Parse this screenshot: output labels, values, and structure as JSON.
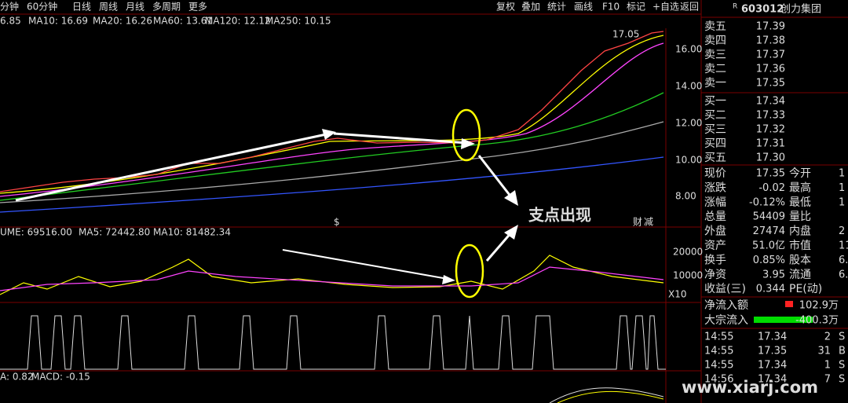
{
  "toolbar": {
    "periods": [
      "分钟",
      "60分钟",
      "日线",
      "周线",
      "月线",
      "多周期",
      "更多"
    ],
    "tools": [
      "复权",
      "叠加",
      "统计",
      "画线",
      "F10",
      "标记",
      "+自选",
      "返回"
    ]
  },
  "ma_legend": [
    {
      "label": "6.85",
      "color": "#ffffff"
    },
    {
      "label": "MA10: 16.69",
      "color": "#ffff00"
    },
    {
      "label": "MA20: 16.26",
      "color": "#ff44ff"
    },
    {
      "label": "MA60: 13.61",
      "color": "#22dd22"
    },
    {
      "label": "MA120: 12.12",
      "color": "#cccccc"
    },
    {
      "label": "MA250: 10.15",
      "color": "#3355ff"
    }
  ],
  "price_axis": [
    "16.00",
    "14.00",
    "12.00",
    "10.00",
    "8.00"
  ],
  "price_marker": "17.05",
  "volume_legend": [
    {
      "label": "UME: 69516.00",
      "color": "#ffffff"
    },
    {
      "label": "MA5: 72442.80",
      "color": "#ffff00"
    },
    {
      "label": "MA10: 81482.34",
      "color": "#ff44ff"
    }
  ],
  "volume_axis": [
    "20000",
    "10000"
  ],
  "volume_multiplier": "X10",
  "macd_legend": [
    {
      "label": "A: 0.82",
      "color": "#ffffff"
    },
    {
      "label": "MACD: -0.15",
      "color": "#ffff00"
    }
  ],
  "annotation": "支点出现",
  "badges": [
    "$",
    "财",
    "减"
  ],
  "stock": {
    "flag": "R",
    "code": "603012",
    "name": "创力集团"
  },
  "order_book": [
    {
      "label": "卖五",
      "price": "17.39",
      "color": "#ff4444"
    },
    {
      "label": "卖四",
      "price": "17.38",
      "color": "#ff4444"
    },
    {
      "label": "卖三",
      "price": "17.37",
      "color": "#ffffff"
    },
    {
      "label": "卖二",
      "price": "17.36",
      "color": "#22dd22"
    },
    {
      "label": "卖一",
      "price": "17.35",
      "color": "#22dd22"
    },
    {
      "label": "买一",
      "price": "17.34",
      "color": "#22dd22"
    },
    {
      "label": "买二",
      "price": "17.33",
      "color": "#22dd22"
    },
    {
      "label": "买三",
      "price": "17.32",
      "color": "#22dd22"
    },
    {
      "label": "买四",
      "price": "17.31",
      "color": "#22dd22"
    },
    {
      "label": "买五",
      "price": "17.30",
      "color": "#22dd22"
    }
  ],
  "quotes": [
    {
      "cells": [
        "现价",
        "17.35",
        "今开",
        "1"
      ],
      "color": "#22dd22"
    },
    {
      "cells": [
        "涨跌",
        "-0.02",
        "最高",
        "1"
      ],
      "color": "#22dd22"
    },
    {
      "cells": [
        "涨幅",
        "-0.12%",
        "最低",
        "1"
      ],
      "color": "#22dd22"
    },
    {
      "cells": [
        "总量",
        "54409",
        "量比",
        ""
      ],
      "color": "#ffff00"
    },
    {
      "cells": [
        "外盘",
        "27474",
        "内盘",
        "2"
      ],
      "color": "#ff4444"
    },
    {
      "cells": [
        "资产",
        "51.0亿",
        "市值",
        "110"
      ],
      "color": "#ffffff"
    },
    {
      "cells": [
        "换手",
        "0.85%",
        "股本",
        "6.3"
      ],
      "color": "#ffffff"
    },
    {
      "cells": [
        "净资",
        "3.95",
        "流通",
        "6.3"
      ],
      "color": "#ffffff"
    },
    {
      "cells": [
        "收益(三)",
        "0.344",
        "PE(动)",
        ""
      ],
      "color": "#ffffff"
    }
  ],
  "flows": [
    {
      "label": "净流入额",
      "value": "102.9万",
      "color": "#ff4444"
    },
    {
      "label": "大宗流入",
      "value": "-400.3万",
      "color": "#22dd22"
    }
  ],
  "trades": [
    [
      "14:55",
      "17.34",
      "2",
      "S"
    ],
    [
      "14:55",
      "17.35",
      "31",
      "B"
    ],
    [
      "14:55",
      "17.34",
      "1",
      "S"
    ],
    [
      "14:56",
      "17.34",
      "7",
      "S"
    ]
  ],
  "watermark": "www.xiarj.com"
}
